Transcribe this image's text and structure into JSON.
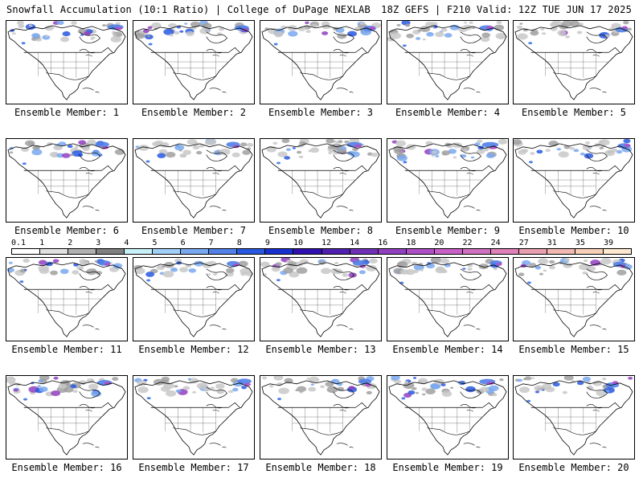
{
  "header": {
    "left_title": "Snowfall Accumulation (10:1 Ratio) | College of DuPage NEXLAB",
    "right_title": "18Z GEFS | F210 Valid: 12Z TUE JUN 17 2025"
  },
  "panels": [
    {
      "label": "Ensemble Member: 1",
      "intensity": 0.85
    },
    {
      "label": "Ensemble Member: 2",
      "intensity": 0.7
    },
    {
      "label": "Ensemble Member: 3",
      "intensity": 0.55
    },
    {
      "label": "Ensemble Member: 4",
      "intensity": 0.75
    },
    {
      "label": "Ensemble Member: 5",
      "intensity": 0.5
    },
    {
      "label": "Ensemble Member: 6",
      "intensity": 0.65
    },
    {
      "label": "Ensemble Member: 7",
      "intensity": 0.6
    },
    {
      "label": "Ensemble Member: 8",
      "intensity": 0.8
    },
    {
      "label": "Ensemble Member: 9",
      "intensity": 0.9
    },
    {
      "label": "Ensemble Member: 10",
      "intensity": 0.55
    },
    {
      "label": "Ensemble Member: 11",
      "intensity": 0.45
    },
    {
      "label": "Ensemble Member: 12",
      "intensity": 0.5
    },
    {
      "label": "Ensemble Member: 13",
      "intensity": 0.6
    },
    {
      "label": "Ensemble Member: 14",
      "intensity": 0.45
    },
    {
      "label": "Ensemble Member: 15",
      "intensity": 0.5
    },
    {
      "label": "Ensemble Member: 16",
      "intensity": 0.75
    },
    {
      "label": "Ensemble Member: 17",
      "intensity": 0.65
    },
    {
      "label": "Ensemble Member: 18",
      "intensity": 0.55
    },
    {
      "label": "Ensemble Member: 19",
      "intensity": 0.85
    },
    {
      "label": "Ensemble Member: 20",
      "intensity": 0.6
    }
  ],
  "legend": {
    "labels": [
      "0.1",
      "1",
      "2",
      "3",
      "4",
      "5",
      "6",
      "7",
      "8",
      "9",
      "10",
      "12",
      "14",
      "16",
      "18",
      "20",
      "22",
      "24",
      "27",
      "31",
      "35",
      "39"
    ],
    "colors": [
      "#ffffff",
      "#e0e0e0",
      "#b0b0b0",
      "#808080",
      "#c8f0f8",
      "#a0d0f8",
      "#78a8f0",
      "#5080e8",
      "#2858e0",
      "#1830d0",
      "#3010b0",
      "#5020b0",
      "#7030b8",
      "#9040c0",
      "#b050c8",
      "#c860c8",
      "#d070c0",
      "#e080b8",
      "#e8a0b0",
      "#f0b8b0",
      "#f8d0b8",
      "#fde8d0"
    ]
  }
}
